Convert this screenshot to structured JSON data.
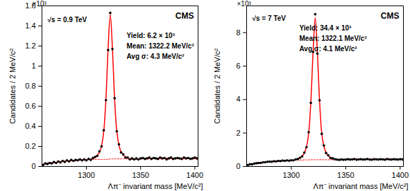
{
  "chart_data": [
    {
      "type": "scatter",
      "xlabel": "Λπ⁻ invariant mass [MeV/c²]",
      "ylabel": "Candidates / 2 MeV/c²",
      "y_scale_label": "×10³",
      "annotations": [
        "CMS",
        "√s = 0.9 TeV",
        "Yield: 6.2 × 10³",
        "Mean: 1322.2 MeV/c²",
        "Avg σ: 4.3 MeV/c²"
      ],
      "xlim": [
        1259,
        1403
      ],
      "xticks": [
        1300,
        1350,
        1400
      ],
      "ylim": [
        0,
        1.6
      ],
      "yticks": [
        0,
        0.2,
        0.4,
        0.6,
        0.8,
        1,
        1.2,
        1.4,
        1.6
      ],
      "x": [
        1260,
        1262,
        1264,
        1266,
        1268,
        1270,
        1272,
        1274,
        1276,
        1278,
        1280,
        1282,
        1284,
        1286,
        1288,
        1290,
        1292,
        1294,
        1296,
        1298,
        1300,
        1302,
        1304,
        1306,
        1308,
        1310,
        1312,
        1314,
        1316,
        1318,
        1320,
        1322,
        1324,
        1326,
        1328,
        1330,
        1332,
        1334,
        1336,
        1338,
        1340,
        1342,
        1344,
        1346,
        1348,
        1350,
        1352,
        1354,
        1356,
        1358,
        1360,
        1362,
        1364,
        1366,
        1368,
        1370,
        1372,
        1374,
        1376,
        1378,
        1380,
        1382,
        1384,
        1386,
        1388,
        1390,
        1392,
        1394,
        1396,
        1398,
        1400,
        1402
      ],
      "series": [
        {
          "type": "line",
          "color": "#ff0000",
          "line_style": "dotted",
          "values": [
            0.02,
            0.025,
            0.03,
            0.03,
            0.035,
            0.04,
            0.04,
            0.045,
            0.045,
            0.05,
            0.05,
            0.055,
            0.055,
            0.06,
            0.06,
            0.06,
            0.065,
            0.065,
            0.065,
            0.065,
            0.065,
            0.07,
            0.07,
            0.07,
            0.07,
            0.07,
            0.07,
            0.07,
            0.07,
            0.07,
            0.07,
            0.075,
            0.075,
            0.075,
            0.075,
            0.075,
            0.075,
            0.075,
            0.075,
            0.075,
            0.075,
            0.075,
            0.075,
            0.075,
            0.075,
            0.075,
            0.08,
            0.08,
            0.08,
            0.08,
            0.08,
            0.08,
            0.08,
            0.08,
            0.08,
            0.08,
            0.08,
            0.08,
            0.08,
            0.08,
            0.08,
            0.08,
            0.08,
            0.08,
            0.08,
            0.08,
            0.08,
            0.08,
            0.08,
            0.08,
            0.08,
            0.08
          ]
        },
        {
          "type": "line",
          "color": "#ff0000",
          "line_style": "solid",
          "values": [
            0.02,
            0.025,
            0.03,
            0.03,
            0.035,
            0.04,
            0.04,
            0.045,
            0.045,
            0.05,
            0.05,
            0.055,
            0.055,
            0.06,
            0.06,
            0.06,
            0.065,
            0.065,
            0.065,
            0.065,
            0.065,
            0.07,
            0.07,
            0.08,
            0.09,
            0.11,
            0.14,
            0.21,
            0.35,
            0.67,
            1.17,
            1.515,
            1.175,
            0.675,
            0.355,
            0.215,
            0.145,
            0.115,
            0.095,
            0.085,
            0.075,
            0.075,
            0.075,
            0.075,
            0.075,
            0.075,
            0.08,
            0.08,
            0.08,
            0.08,
            0.08,
            0.08,
            0.08,
            0.08,
            0.08,
            0.08,
            0.08,
            0.08,
            0.08,
            0.08,
            0.08,
            0.08,
            0.08,
            0.08,
            0.08,
            0.08,
            0.08,
            0.08,
            0.08,
            0.08,
            0.08,
            0.08
          ]
        },
        {
          "type": "scatter",
          "color": "#000000",
          "marker": "circle",
          "values": [
            0.015,
            0.03,
            0.025,
            0.035,
            0.03,
            0.045,
            0.035,
            0.05,
            0.04,
            0.055,
            0.045,
            0.06,
            0.05,
            0.065,
            0.055,
            0.065,
            0.06,
            0.07,
            0.06,
            0.07,
            0.06,
            0.075,
            0.065,
            0.085,
            0.095,
            0.105,
            0.15,
            0.2,
            0.36,
            0.66,
            1.16,
            1.53,
            1.17,
            0.68,
            0.35,
            0.22,
            0.14,
            0.12,
            0.09,
            0.09,
            0.07,
            0.08,
            0.07,
            0.08,
            0.07,
            0.08,
            0.085,
            0.075,
            0.08,
            0.09,
            0.075,
            0.085,
            0.08,
            0.075,
            0.09,
            0.08,
            0.085,
            0.07,
            0.08,
            0.09,
            0.075,
            0.08,
            0.085,
            0.08,
            0.075,
            0.09,
            0.08,
            0.085,
            0.075,
            0.08,
            0.09,
            0.08
          ]
        }
      ]
    },
    {
      "type": "scatter",
      "xlabel": "Λπ⁻ invariant mass [MeV/c²]",
      "ylabel": "Candidates / 2 MeV/c²",
      "y_scale_label": "×10³",
      "annotations": [
        "CMS",
        "√s = 7 TeV",
        "Yield: 34.4 × 10³",
        "Mean: 1322.1 MeV/c²",
        "Avg σ: 4.1 MeV/c²"
      ],
      "xlim": [
        1259,
        1403
      ],
      "xticks": [
        1300,
        1350,
        1400
      ],
      "ylim": [
        0,
        9.6
      ],
      "yticks": [
        0,
        2,
        4,
        6,
        8
      ],
      "x": [
        1260,
        1262,
        1264,
        1266,
        1268,
        1270,
        1272,
        1274,
        1276,
        1278,
        1280,
        1282,
        1284,
        1286,
        1288,
        1290,
        1292,
        1294,
        1296,
        1298,
        1300,
        1302,
        1304,
        1306,
        1308,
        1310,
        1312,
        1314,
        1316,
        1318,
        1320,
        1322,
        1324,
        1326,
        1328,
        1330,
        1332,
        1334,
        1336,
        1338,
        1340,
        1342,
        1344,
        1346,
        1348,
        1350,
        1352,
        1354,
        1356,
        1358,
        1360,
        1362,
        1364,
        1366,
        1368,
        1370,
        1372,
        1374,
        1376,
        1378,
        1380,
        1382,
        1384,
        1386,
        1388,
        1390,
        1392,
        1394,
        1396,
        1398,
        1400,
        1402
      ],
      "series": [
        {
          "type": "line",
          "color": "#ff0000",
          "line_style": "dotted",
          "values": [
            0.1,
            0.12,
            0.14,
            0.16,
            0.18,
            0.2,
            0.22,
            0.24,
            0.26,
            0.27,
            0.28,
            0.29,
            0.3,
            0.31,
            0.32,
            0.33,
            0.34,
            0.34,
            0.35,
            0.35,
            0.36,
            0.37,
            0.37,
            0.38,
            0.38,
            0.38,
            0.39,
            0.39,
            0.39,
            0.4,
            0.4,
            0.4,
            0.4,
            0.4,
            0.4,
            0.4,
            0.4,
            0.4,
            0.4,
            0.4,
            0.4,
            0.4,
            0.4,
            0.4,
            0.4,
            0.4,
            0.42,
            0.42,
            0.42,
            0.42,
            0.42,
            0.42,
            0.42,
            0.42,
            0.42,
            0.42,
            0.42,
            0.42,
            0.42,
            0.42,
            0.42,
            0.42,
            0.42,
            0.42,
            0.42,
            0.42,
            0.42,
            0.42,
            0.42,
            0.42,
            0.42,
            0.42
          ]
        },
        {
          "type": "line",
          "color": "#ff0000",
          "line_style": "solid",
          "values": [
            0.1,
            0.12,
            0.14,
            0.16,
            0.18,
            0.2,
            0.22,
            0.24,
            0.26,
            0.27,
            0.28,
            0.29,
            0.3,
            0.31,
            0.32,
            0.33,
            0.34,
            0.34,
            0.35,
            0.35,
            0.36,
            0.37,
            0.41,
            0.45,
            0.51,
            0.62,
            0.8,
            1.19,
            1.99,
            3.89,
            6.8,
            8.9,
            6.8,
            3.9,
            2,
            1.2,
            0.82,
            0.64,
            0.53,
            0.47,
            0.44,
            0.4,
            0.4,
            0.4,
            0.4,
            0.4,
            0.42,
            0.42,
            0.42,
            0.42,
            0.42,
            0.42,
            0.42,
            0.42,
            0.42,
            0.42,
            0.42,
            0.42,
            0.42,
            0.42,
            0.42,
            0.42,
            0.42,
            0.42,
            0.42,
            0.42,
            0.42,
            0.42,
            0.42,
            0.42,
            0.42,
            0.42
          ]
        },
        {
          "type": "scatter",
          "color": "#000000",
          "marker": "circle",
          "values": [
            0.08,
            0.13,
            0.13,
            0.17,
            0.19,
            0.21,
            0.21,
            0.25,
            0.25,
            0.28,
            0.29,
            0.28,
            0.31,
            0.3,
            0.33,
            0.32,
            0.35,
            0.33,
            0.36,
            0.34,
            0.37,
            0.36,
            0.42,
            0.44,
            0.52,
            0.6,
            0.83,
            1.15,
            2.05,
            3.8,
            6.85,
            9.1,
            6.75,
            3.95,
            1.95,
            1.25,
            0.8,
            0.66,
            0.51,
            0.48,
            0.43,
            0.41,
            0.39,
            0.42,
            0.4,
            0.41,
            0.43,
            0.41,
            0.42,
            0.44,
            0.4,
            0.42,
            0.43,
            0.41,
            0.42,
            0.44,
            0.41,
            0.4,
            0.43,
            0.42,
            0.41,
            0.43,
            0.42,
            0.4,
            0.44,
            0.42,
            0.41,
            0.43,
            0.42,
            0.41,
            0.43,
            0.42
          ]
        }
      ]
    }
  ]
}
